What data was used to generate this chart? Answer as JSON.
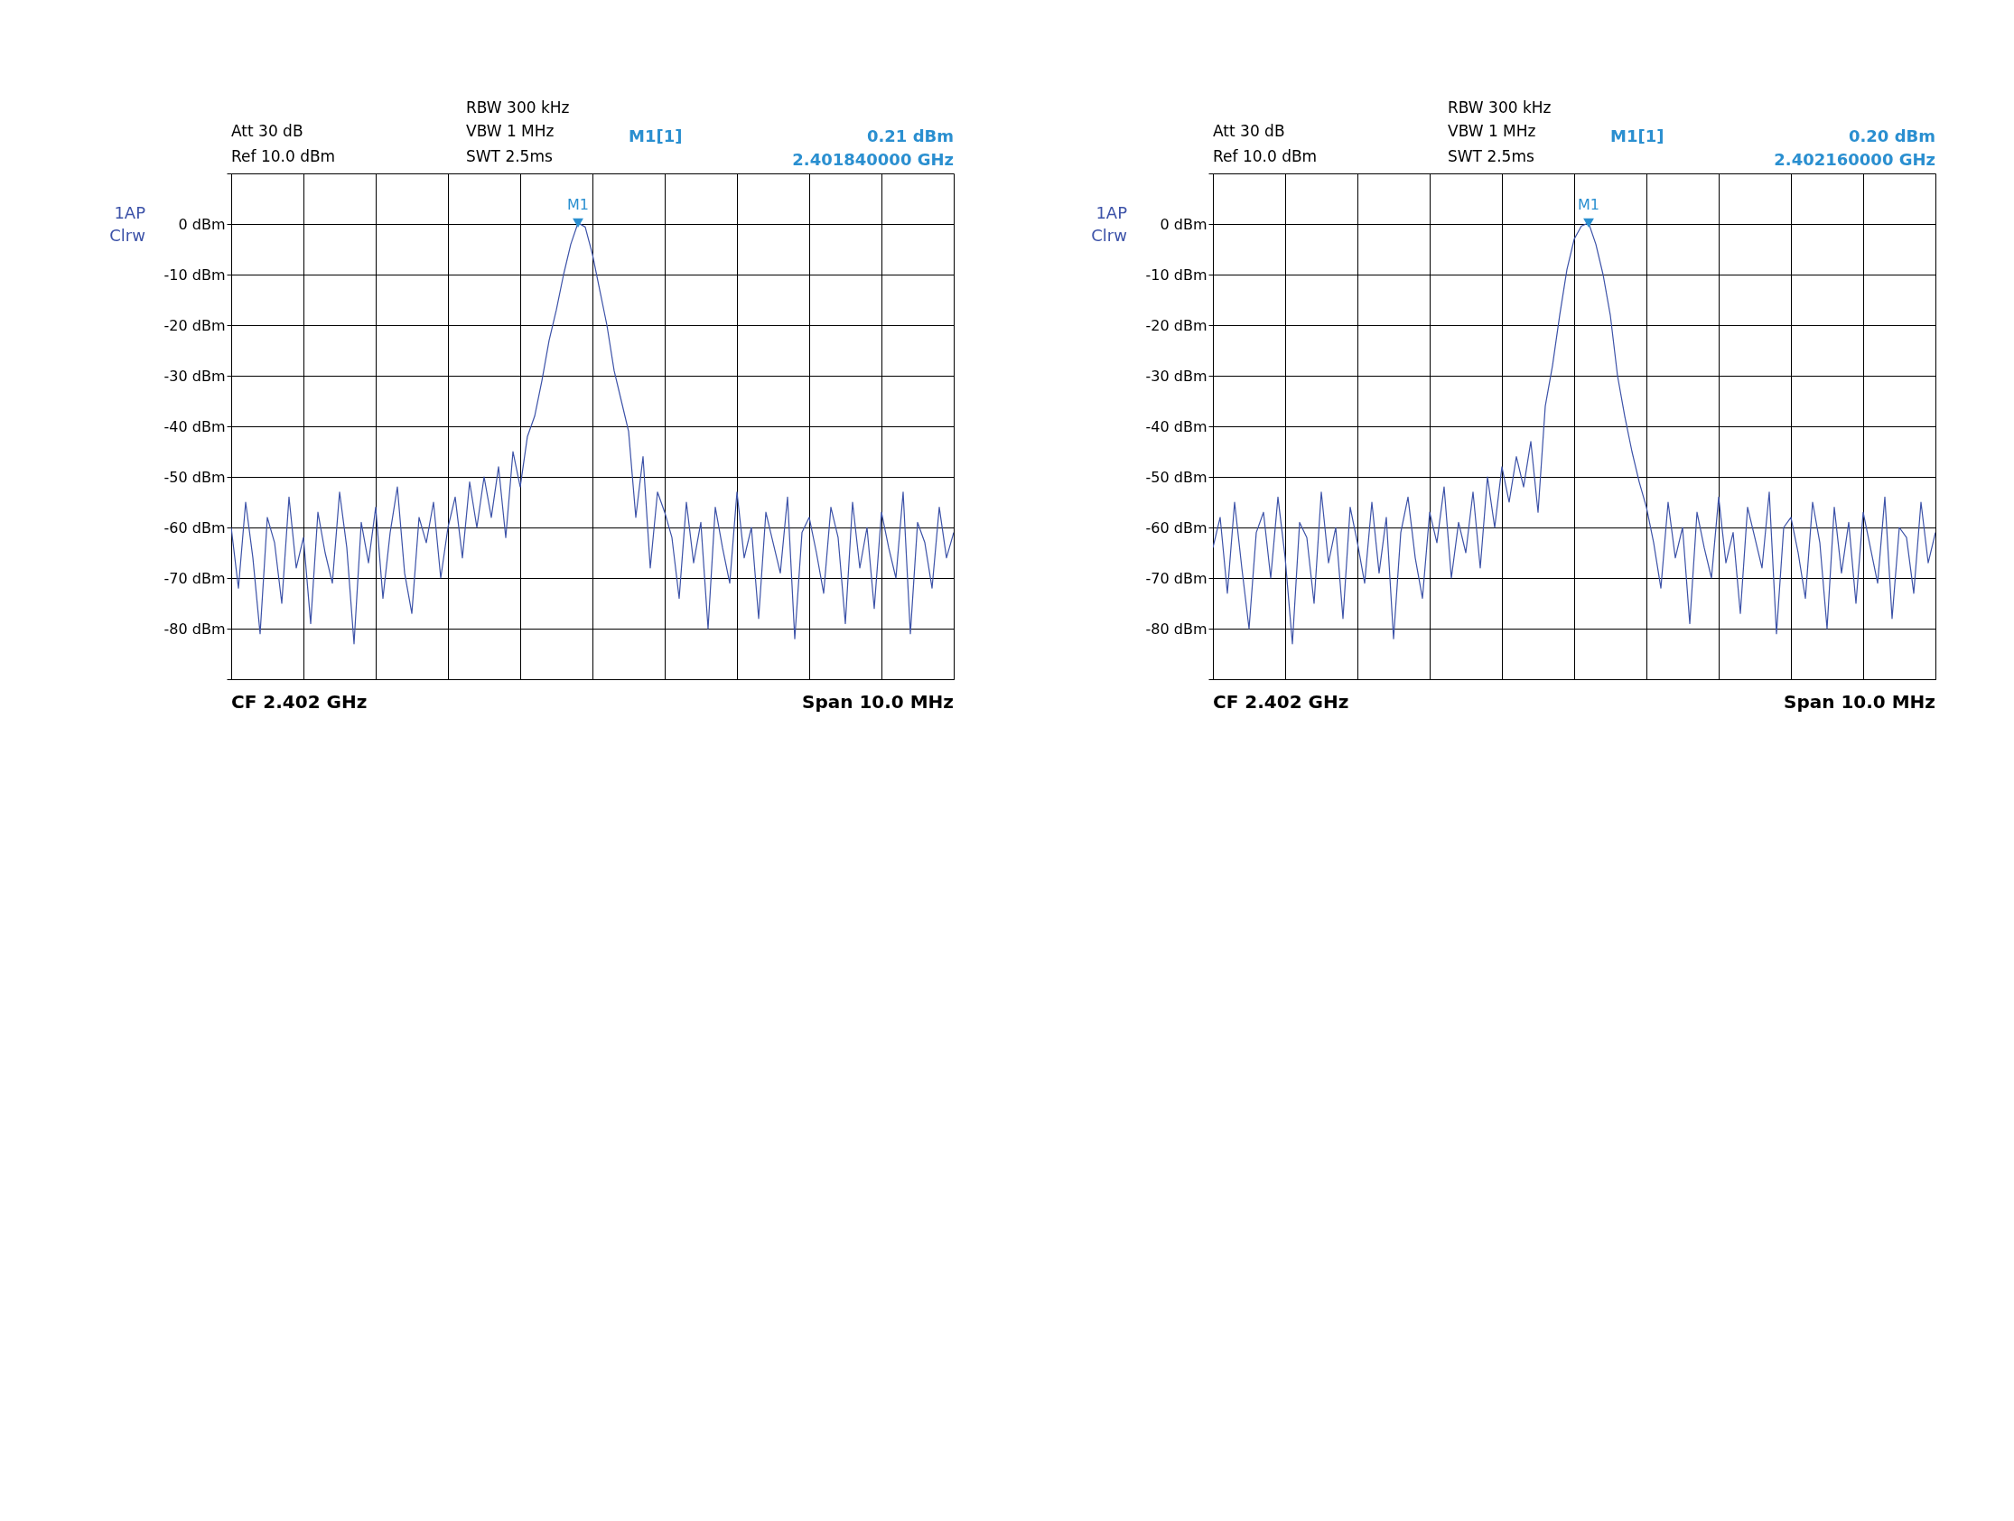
{
  "chart_data": [
    {
      "type": "line",
      "annotations": [
        "RBW 300 kHz",
        "Att  30 dB",
        "VBW 1 MHz",
        "M1[1]",
        "0.21 dBm",
        "Ref  10.0 dBm",
        "SWT 2.5ms",
        "2.401840000 GHz",
        "1AP",
        "Clrw",
        "CF 2.402 GHz",
        "Span 10.0 MHz",
        "M1"
      ],
      "categories": [
        null,
        null,
        null,
        null,
        null,
        null,
        null,
        null,
        null,
        null,
        null,
        null,
        null,
        null,
        null,
        null,
        null,
        null,
        null,
        null,
        null,
        null,
        null,
        null,
        null,
        null,
        null,
        null,
        null,
        null,
        null,
        null,
        null,
        null,
        null,
        null,
        null,
        null,
        null,
        null,
        null,
        null,
        null,
        null,
        null,
        null,
        null,
        null,
        null,
        null,
        null,
        null,
        null,
        null,
        null,
        null,
        null,
        null,
        null,
        null,
        null,
        null,
        null,
        null,
        null,
        null,
        null,
        null,
        null,
        null,
        null,
        null,
        null,
        null,
        null,
        null,
        null,
        null,
        null,
        null,
        null,
        null,
        null,
        null,
        null,
        null,
        null,
        null,
        null,
        null,
        null,
        null,
        null,
        null,
        null,
        null,
        null,
        null,
        null,
        null,
        null
      ],
      "ylim": [
        -90,
        10
      ],
      "yticks": [
        {
          "value": 10,
          "label": null
        },
        {
          "value": 0,
          "label": "0 dBm"
        },
        {
          "value": -10,
          "label": "-10 dBm"
        },
        {
          "value": -20,
          "label": "-20 dBm"
        },
        {
          "value": -30,
          "label": "-30 dBm"
        },
        {
          "value": -40,
          "label": "-40 dBm"
        },
        {
          "value": -50,
          "label": "-50 dBm"
        },
        {
          "value": -60,
          "label": "-60 dBm"
        },
        {
          "value": -70,
          "label": "-70 dBm"
        },
        {
          "value": -80,
          "label": "-80 dBm"
        },
        {
          "value": -90,
          "label": null
        }
      ],
      "grid": true,
      "tick_labels": "y",
      "series": [
        {
          "color": "#3c52a8",
          "values": [
            -60,
            -72,
            -55,
            -66,
            -81,
            -58,
            -63,
            -75,
            -54,
            -68,
            -62,
            -79,
            -57,
            -65,
            -71,
            -53,
            -64,
            -83,
            -59,
            -67,
            -56,
            -74,
            -61,
            -52,
            -69,
            -77,
            -58,
            -63,
            -55,
            -70,
            -60,
            -54,
            -66,
            -51,
            -60,
            -50,
            -58,
            -48,
            -62,
            -45,
            -52,
            -42,
            -38,
            -31,
            -23,
            -17,
            -10,
            -4,
            0.21,
            -0.6,
            -6,
            -13,
            -20,
            -29,
            -35,
            -41,
            -58,
            -46,
            -68,
            -53,
            -57,
            -62,
            -74,
            -55,
            -67,
            -59,
            -80,
            -56,
            -64,
            -71,
            -53,
            -66,
            -60,
            -78,
            -57,
            -63,
            -69,
            -54,
            -82,
            -61,
            -58,
            -65,
            -73,
            -56,
            -62,
            -79,
            -55,
            -68,
            -60,
            -76,
            -57,
            -64,
            -70,
            -53,
            -81,
            -59,
            -63,
            -72,
            -56,
            -66,
            -61
          ]
        }
      ]
    },
    {
      "type": "line",
      "annotations": [
        "RBW 300 kHz",
        "Att  30 dB",
        "VBW 1 MHz",
        "M1[1]",
        "0.20 dBm",
        "Ref  10.0 dBm",
        "SWT 2.5ms",
        "2.402160000 GHz",
        "1AP",
        "Clrw",
        "CF 2.402 GHz",
        "Span 10.0 MHz",
        "M1"
      ],
      "categories": [
        null,
        null,
        null,
        null,
        null,
        null,
        null,
        null,
        null,
        null,
        null,
        null,
        null,
        null,
        null,
        null,
        null,
        null,
        null,
        null,
        null,
        null,
        null,
        null,
        null,
        null,
        null,
        null,
        null,
        null,
        null,
        null,
        null,
        null,
        null,
        null,
        null,
        null,
        null,
        null,
        null,
        null,
        null,
        null,
        null,
        null,
        null,
        null,
        null,
        null,
        null,
        null,
        null,
        null,
        null,
        null,
        null,
        null,
        null,
        null,
        null,
        null,
        null,
        null,
        null,
        null,
        null,
        null,
        null,
        null,
        null,
        null,
        null,
        null,
        null,
        null,
        null,
        null,
        null,
        null,
        null,
        null,
        null,
        null,
        null,
        null,
        null,
        null,
        null,
        null,
        null,
        null,
        null,
        null,
        null,
        null,
        null,
        null,
        null,
        null,
        null
      ],
      "ylim": [
        -90,
        10
      ],
      "yticks": [
        {
          "value": 10,
          "label": null
        },
        {
          "value": 0,
          "label": "0 dBm"
        },
        {
          "value": -10,
          "label": "-10 dBm"
        },
        {
          "value": -20,
          "label": "-20 dBm"
        },
        {
          "value": -30,
          "label": "-30 dBm"
        },
        {
          "value": -40,
          "label": "-40 dBm"
        },
        {
          "value": -50,
          "label": "-50 dBm"
        },
        {
          "value": -60,
          "label": "-60 dBm"
        },
        {
          "value": -70,
          "label": "-70 dBm"
        },
        {
          "value": -80,
          "label": "-80 dBm"
        },
        {
          "value": -90,
          "label": null
        }
      ],
      "grid": true,
      "tick_labels": "y",
      "series": [
        {
          "color": "#3c52a8",
          "values": [
            -64,
            -58,
            -73,
            -55,
            -68,
            -80,
            -61,
            -57,
            -70,
            -54,
            -66,
            -83,
            -59,
            -62,
            -75,
            -53,
            -67,
            -60,
            -78,
            -56,
            -63,
            -71,
            -55,
            -69,
            -58,
            -82,
            -61,
            -54,
            -66,
            -74,
            -57,
            -63,
            -52,
            -70,
            -59,
            -65,
            -53,
            -68,
            -50,
            -60,
            -48,
            -55,
            -46,
            -52,
            -43,
            -57,
            -36,
            -28,
            -18,
            -9,
            -3,
            -0.4,
            0.2,
            -4,
            -10,
            -18,
            -30,
            -38,
            -45,
            -51,
            -56,
            -63,
            -72,
            -55,
            -66,
            -60,
            -79,
            -57,
            -64,
            -70,
            -54,
            -67,
            -61,
            -77,
            -56,
            -62,
            -68,
            -53,
            -81,
            -60,
            -58,
            -65,
            -74,
            -55,
            -63,
            -80,
            -56,
            -69,
            -59,
            -75,
            -57,
            -64,
            -71,
            -54,
            -78,
            -60,
            -62,
            -73,
            -55,
            -67,
            -61
          ]
        }
      ]
    }
  ]
}
